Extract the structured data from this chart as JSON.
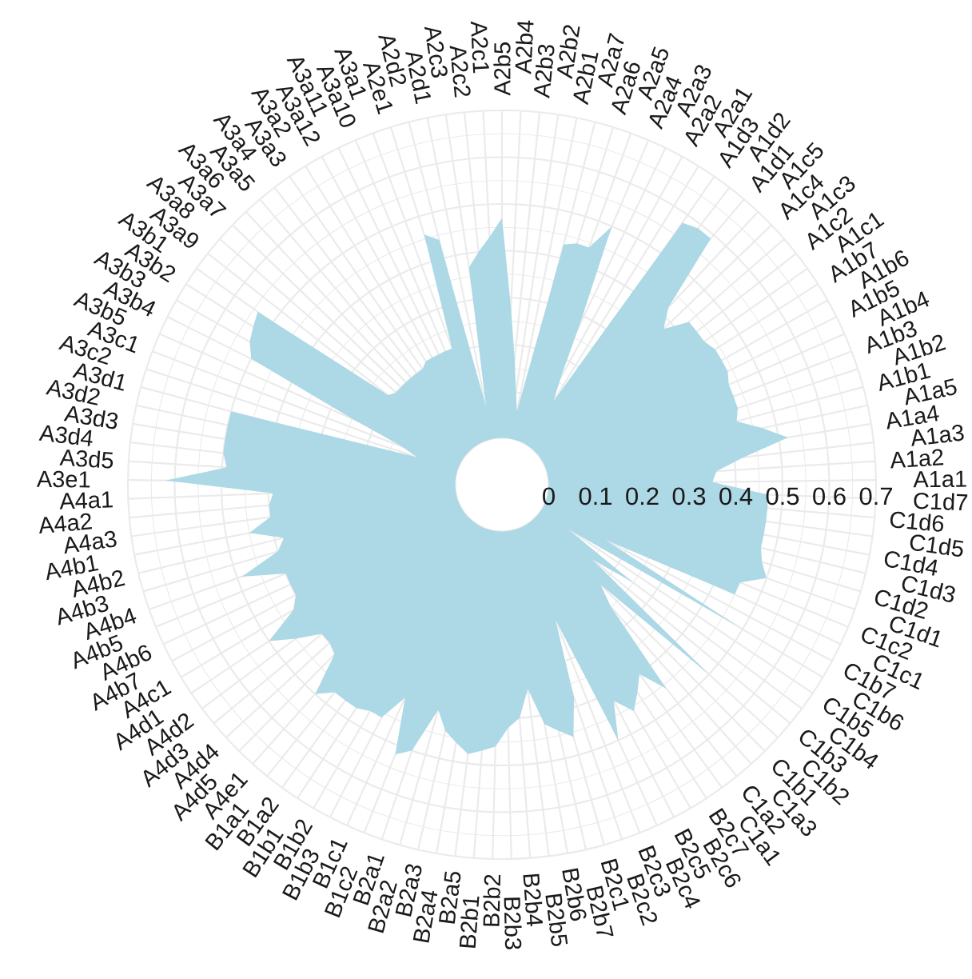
{
  "chart_data": {
    "type": "radar",
    "categories": [
      "A2b5",
      "A2b4",
      "A2b3",
      "A2b2",
      "A2b1",
      "A2a7",
      "A2a6",
      "A2a5",
      "A2a4",
      "A2a3",
      "A2a2",
      "A2a1",
      "A1d3",
      "A1d2",
      "A1d1",
      "A1c5",
      "A1c4",
      "A1c3",
      "A1c2",
      "A1c1",
      "A1b7",
      "A1b6",
      "A1b5",
      "A1b4",
      "A1b3",
      "A1b2",
      "A1b1",
      "A1a5",
      "A1a4",
      "A1a3",
      "A1a2",
      "A1a1",
      "C1d7",
      "C1d6",
      "C1d5",
      "C1d4",
      "C1d3",
      "C1d2",
      "C1d1",
      "C1c2",
      "C1c1",
      "C1b7",
      "C1b6",
      "C1b5",
      "C1b4",
      "C1b3",
      "C1b2",
      "C1b1",
      "C1a3",
      "C1a2",
      "C1a1",
      "B2c7",
      "B2c6",
      "B2c5",
      "B2c4",
      "B2c3",
      "B2c2",
      "B2c1",
      "B2b7",
      "B2b6",
      "B2b5",
      "B2b4",
      "B2b3",
      "B2b2",
      "B2b1",
      "B2a5",
      "B2a4",
      "B2a3",
      "B2a2",
      "B2a1",
      "B1c2",
      "B1c1",
      "B1b3",
      "B1b2",
      "B1b1",
      "B1a2",
      "B1a1",
      "A4e1",
      "A4d5",
      "A4d4",
      "A4d3",
      "A4d2",
      "A4d1",
      "A4c1",
      "A4b7",
      "A4b6",
      "A4b5",
      "A4b4",
      "A4b3",
      "A4b2",
      "A4b1",
      "A4a3",
      "A4a2",
      "A4a1",
      "A3e1",
      "A3d5",
      "A3d4",
      "A3d3",
      "A3d2",
      "A3d1",
      "A3c2",
      "A3c1",
      "A3b5",
      "A3b4",
      "A3b3",
      "A3b2",
      "A3b1",
      "A3a9",
      "A3a8",
      "A3a7",
      "A3a6",
      "A3a5",
      "A3a4",
      "A3a3",
      "A3a2",
      "A3a12",
      "A3a11",
      "A3a10",
      "A3a1",
      "A2e1",
      "A2d2",
      "A2d1",
      "A2c3",
      "A2c2",
      "A2c1"
    ],
    "series": [
      {
        "color": "#add8e6",
        "values": [
          0.47,
          0.28,
          0.17,
          0.1,
          0.06,
          0.43,
          0.44,
          0.44,
          0.5,
          0.28,
          0.16,
          0.11,
          0.58,
          0.59,
          0.59,
          0.42,
          0.38,
          0.43,
          0.43,
          0.43,
          0.44,
          0.44,
          0.44,
          0.43,
          0.43,
          0.43,
          0.42,
          0.47,
          0.52,
          0.42,
          0.36,
          0.35,
          0.47,
          0.47,
          0.47,
          0.47,
          0.47,
          0.48,
          0.5,
          0.45,
          0.45,
          0.15,
          0.49,
          0.07,
          0.25,
          0.15,
          0.5,
          0.2,
          0.25,
          0.46,
          0.4,
          0.43,
          0.46,
          0.42,
          0.5,
          0.21,
          0.38,
          0.46,
          0.44,
          0.42,
          0.34,
          0.4,
          0.42,
          0.46,
          0.47,
          0.48,
          0.46,
          0.44,
          0.4,
          0.5,
          0.52,
          0.4,
          0.46,
          0.46,
          0.47,
          0.47,
          0.47,
          0.5,
          0.41,
          0.4,
          0.4,
          0.45,
          0.5,
          0.42,
          0.4,
          0.4,
          0.4,
          0.49,
          0.4,
          0.38,
          0.45,
          0.4,
          0.4,
          0.39,
          0.62,
          0.49,
          0.5,
          0.5,
          0.5,
          0.5,
          0.09,
          0.13,
          0.25,
          0.5,
          0.52,
          0.53,
          0.54,
          0.21,
          0.2,
          0.2,
          0.2,
          0.2,
          0.2,
          0.2,
          0.21,
          0.21,
          0.21,
          0.21,
          0.21,
          0.46,
          0.44,
          0.07,
          0.37,
          0.4,
          0.43
        ]
      }
    ],
    "ylim": [
      -0.1,
      0.7
    ],
    "yticks": [
      0,
      0.1,
      0.2,
      0.3,
      0.4,
      0.5,
      0.6,
      0.7
    ],
    "grid": true
  }
}
